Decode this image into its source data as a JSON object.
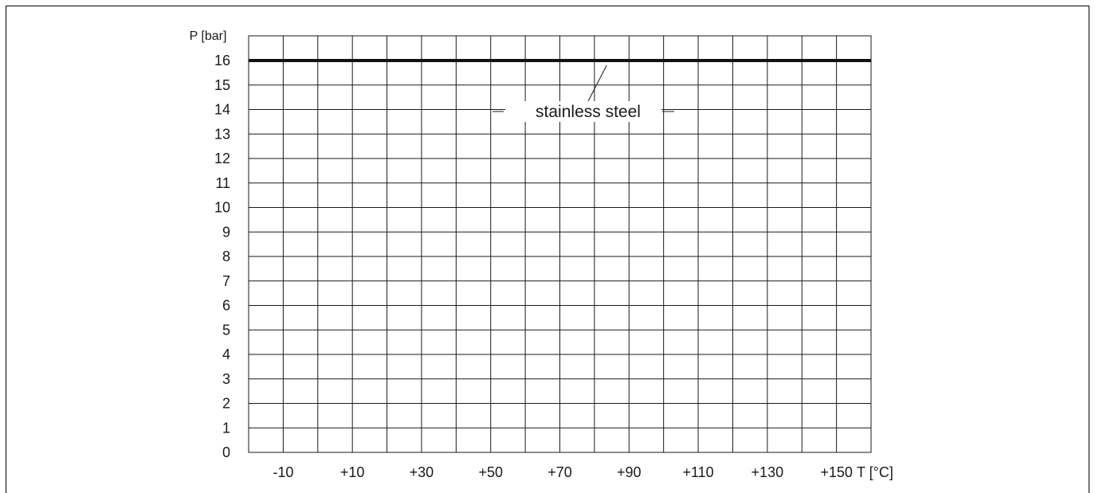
{
  "chart_data": {
    "type": "line",
    "title": "",
    "ylabel": "P [bar]",
    "xlabel": "T [°C]",
    "ylim": [
      0,
      16
    ],
    "xlim": [
      -20,
      160
    ],
    "y_ticks": [
      0,
      1,
      2,
      3,
      4,
      5,
      6,
      7,
      8,
      9,
      10,
      11,
      12,
      13,
      14,
      15,
      16
    ],
    "x_ticks": [
      "-10",
      "+10",
      "+30",
      "+50",
      "+70",
      "+90",
      "+110",
      "+130",
      "+150"
    ],
    "x_grid_step": 10,
    "grid": true,
    "series": [
      {
        "name": "stainless steel",
        "x": [
          -20,
          160
        ],
        "y": [
          16,
          16
        ]
      }
    ],
    "annotation": {
      "text": "stainless steel",
      "points_to": [
        84,
        16
      ]
    }
  }
}
